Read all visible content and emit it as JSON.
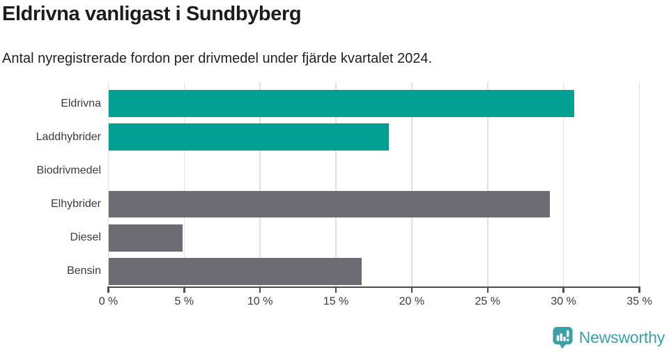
{
  "header": {
    "title": "Eldrivna vanligast i Sundbyberg",
    "subtitle": "Antal nyregistrerade fordon per drivmedel under fjärde kvartalet 2024."
  },
  "chart_data": {
    "type": "bar",
    "orientation": "horizontal",
    "title": "Eldrivna vanligast i Sundbyberg",
    "subtitle": "Antal nyregistrerade fordon per drivmedel under fjärde kvartalet 2024.",
    "categories": [
      "Eldrivna",
      "Laddhybrider",
      "Biodrivmedel",
      "Elhybrider",
      "Diesel",
      "Bensin"
    ],
    "values": [
      30.7,
      18.5,
      0,
      29.1,
      4.9,
      16.7
    ],
    "unit": "%",
    "xlim": [
      0,
      35
    ],
    "xticks": [
      0,
      5,
      10,
      15,
      20,
      25,
      30,
      35
    ],
    "xtick_labels": [
      "0 %",
      "5 %",
      "10 %",
      "15 %",
      "20 %",
      "25 %",
      "30 %",
      "35 %"
    ],
    "bar_colors": [
      "#00a092",
      "#00a092",
      "#00a092",
      "#6c6c72",
      "#6c6c72",
      "#6c6c72"
    ],
    "grid": "vertical-only",
    "legend": "none"
  },
  "colors": {
    "accent_teal": "#00a092",
    "neutral_gray": "#6c6c72",
    "gridline": "#e1e1e1",
    "axis": "#4d4d4d",
    "text": "#3b3b3b",
    "brand_teal": "#3c9fa6"
  },
  "footer": {
    "brand": "Newsworthy"
  }
}
